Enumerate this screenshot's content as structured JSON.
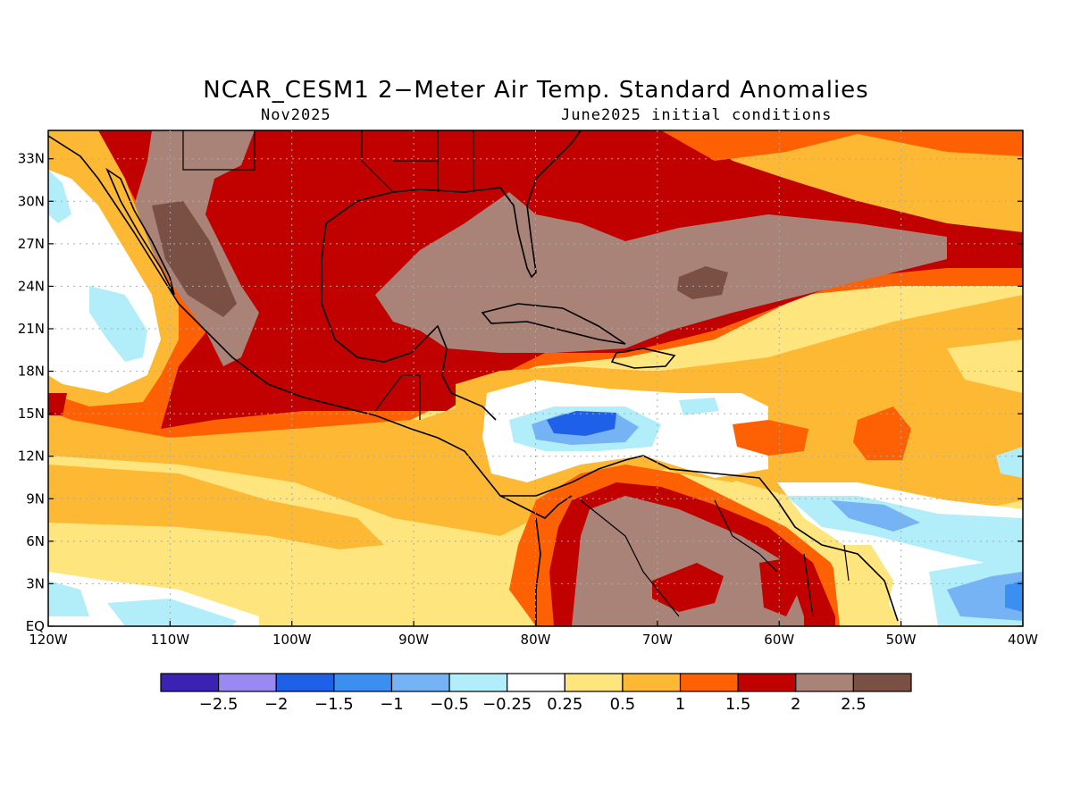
{
  "title": "NCAR_CESM1 2−Meter Air Temp. Standard Anomalies",
  "subtitle_left": "Nov2025",
  "subtitle_right": "June2025 initial conditions",
  "axes": {
    "lon_labels": [
      "120W",
      "110W",
      "100W",
      "90W",
      "80W",
      "70W",
      "60W",
      "50W",
      "40W"
    ],
    "lat_labels": [
      "EQ",
      "3N",
      "6N",
      "9N",
      "12N",
      "15N",
      "18N",
      "21N",
      "24N",
      "27N",
      "30N",
      "33N"
    ]
  },
  "colorbar": {
    "labels": [
      "−2.5",
      "−2",
      "−1.5",
      "−1",
      "−0.5",
      "−0.25",
      "0.25",
      "0.5",
      "1",
      "1.5",
      "2",
      "2.5"
    ],
    "colors": [
      "#3b22b2",
      "#9b89f3",
      "#1f60e8",
      "#3b8ff0",
      "#76b3f5",
      "#b2eefa",
      "#ffffff",
      "#fee57e",
      "#fdb934",
      "#fd6103",
      "#c10000",
      "#a98278",
      "#7a4f44"
    ]
  },
  "colors": {
    "land_outline": "#000000",
    "grid": "#aaaaaa"
  }
}
